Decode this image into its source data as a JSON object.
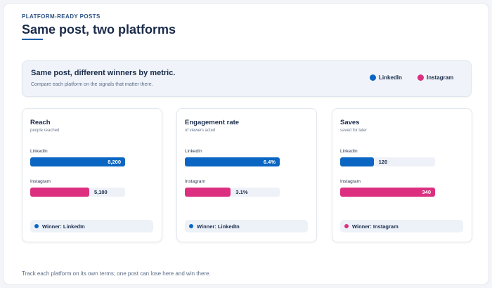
{
  "header": {
    "eyebrow": "PLATFORM-READY POSTS",
    "title": "Same post, two platforms"
  },
  "banner": {
    "title": "Same post, different winners by metric.",
    "subtitle": "Compare each platform on the signals that matter there."
  },
  "footer": "Track each platform on its own terms; one post can lose here and win there.",
  "chart_data": [
    {
      "type": "bar",
      "title": "Reach",
      "subtitle": "people reached",
      "categories": [
        "LinkedIn",
        "Instagram"
      ],
      "colors": [
        "#0a66c2",
        "#dc2f7f"
      ],
      "values": [
        8200,
        5100
      ],
      "value_labels": [
        "8,200",
        "5,100"
      ],
      "winner": "Winner: LinkedIn",
      "winner_color": "#0a66c2"
    },
    {
      "type": "bar",
      "title": "Engagement rate",
      "subtitle": "of viewers acted",
      "categories": [
        "LinkedIn",
        "Instagram"
      ],
      "colors": [
        "#0a66c2",
        "#dc2f7f"
      ],
      "values": [
        6.4,
        3.1
      ],
      "value_labels": [
        "6.4%",
        "3.1%"
      ],
      "winner": "Winner: LinkedIn",
      "winner_color": "#0a66c2"
    },
    {
      "type": "bar",
      "title": "Saves",
      "subtitle": "saved for later",
      "categories": [
        "LinkedIn",
        "Instagram"
      ],
      "colors": [
        "#0a66c2",
        "#dc2f7f"
      ],
      "values": [
        120,
        340
      ],
      "winner": "Winner: Instagram",
      "winner_color": "#dc2f7f"
    }
  ]
}
